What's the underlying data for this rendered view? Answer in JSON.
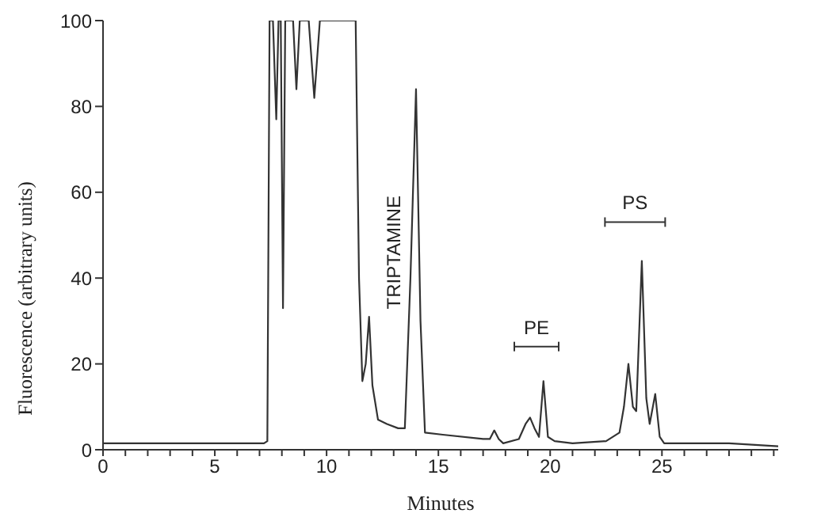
{
  "chart_data": {
    "type": "line",
    "xlabel": "Minutes",
    "ylabel": "Fluorescence (arbitrary units)",
    "xlim": [
      0,
      30.2
    ],
    "ylim": [
      0,
      100
    ],
    "xticks": [
      0,
      {
        "value": 1,
        "label": null
      },
      {
        "value": 2,
        "label": null
      },
      {
        "value": 3,
        "label": null
      },
      {
        "value": 4,
        "label": null
      },
      5,
      {
        "value": 6,
        "label": null
      },
      {
        "value": 7,
        "label": null
      },
      {
        "value": 8,
        "label": null
      },
      {
        "value": 9,
        "label": null
      },
      10,
      {
        "value": 11,
        "label": null
      },
      {
        "value": 12,
        "label": null
      },
      {
        "value": 13,
        "label": null
      },
      {
        "value": 14,
        "label": null
      },
      15,
      {
        "value": 16,
        "label": null
      },
      {
        "value": 17,
        "label": null
      },
      {
        "value": 18,
        "label": null
      },
      {
        "value": 19,
        "label": null
      },
      20,
      {
        "value": 21,
        "label": null
      },
      {
        "value": 22,
        "label": null
      },
      {
        "value": 23,
        "label": null
      },
      {
        "value": 24,
        "label": null
      },
      25,
      {
        "value": 26,
        "label": null
      },
      {
        "value": 27,
        "label": null
      },
      {
        "value": 28,
        "label": null
      },
      {
        "value": 29,
        "label": null
      },
      {
        "value": 30,
        "label": null
      }
    ],
    "yticks": [
      0,
      20,
      40,
      60,
      80,
      100
    ],
    "grid": false,
    "marker": "none",
    "line_style": "solid",
    "series": [
      {
        "color": "#333333",
        "x": [
          0,
          3,
          7.2,
          7.35,
          7.45,
          7.6,
          7.75,
          7.85,
          7.95,
          8.05,
          8.15,
          8.5,
          8.65,
          8.8,
          9.2,
          9.45,
          9.7,
          11.3,
          11.45,
          11.6,
          11.75,
          11.9,
          12.05,
          12.3,
          12.7,
          13.2,
          13.5,
          13.75,
          14.0,
          14.2,
          14.4,
          15.2,
          17.0,
          17.3,
          17.5,
          17.7,
          17.9,
          18.6,
          18.9,
          19.1,
          19.3,
          19.5,
          19.7,
          19.9,
          20.2,
          21.0,
          22.5,
          23.1,
          23.3,
          23.5,
          23.7,
          23.85,
          24.1,
          24.3,
          24.45,
          24.7,
          24.9,
          25.1,
          28.0,
          30.2
        ],
        "values": [
          1.5,
          1.5,
          1.5,
          2,
          100,
          100,
          77,
          100,
          100,
          33,
          100,
          100,
          84,
          100,
          100,
          82,
          100,
          100,
          40,
          16,
          20,
          31,
          15,
          7,
          6,
          5,
          5,
          40,
          84,
          30,
          4,
          3.5,
          2.5,
          2.5,
          4.5,
          2.5,
          1.5,
          2.5,
          6,
          7.5,
          5,
          3,
          16,
          3,
          2,
          1.5,
          2,
          4,
          10,
          20,
          10,
          9,
          44,
          12,
          6,
          13,
          3,
          1.5,
          1.5,
          0.8
        ]
      }
    ],
    "annotations": [
      "TRIPTAMINE",
      "PE",
      "PS"
    ]
  }
}
